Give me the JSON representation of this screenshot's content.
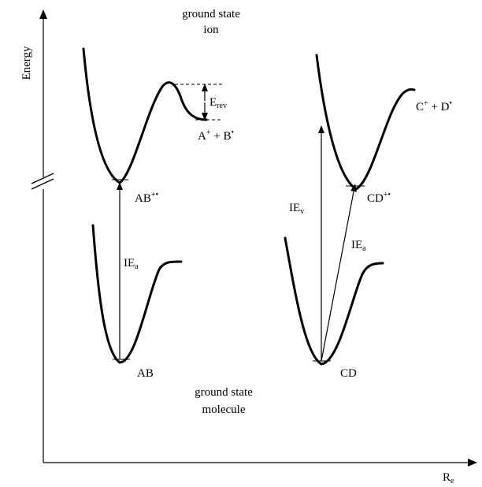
{
  "axes": {
    "y_label": "Energy",
    "x_label_main": "R",
    "x_label_sub": "e"
  },
  "captions": {
    "top_line1": "ground state",
    "top_line2": "ion",
    "bottom_line1": "ground state",
    "bottom_line2": "molecule"
  },
  "labels": {
    "e_rev_main": "E",
    "e_rev_sub": "rev",
    "a_plus_b": {
      "a": "A",
      "a_sup": "+",
      "mid": " + B",
      "b_sup": "•"
    },
    "ab_ion": {
      "main": "AB",
      "sup": "+•"
    },
    "ab": "AB",
    "ie_a_left": {
      "main": "IE",
      "sub": "a"
    },
    "c_plus_d": {
      "c": "C",
      "c_sup": "+",
      "mid": " + D",
      "d_sup": "•"
    },
    "ie_v": {
      "main": "IE",
      "sub": "v"
    },
    "cd_ion": {
      "main": "CD",
      "sup": "+•"
    },
    "ie_a_right": {
      "main": "IE",
      "sub": "a"
    },
    "cd": "CD"
  }
}
